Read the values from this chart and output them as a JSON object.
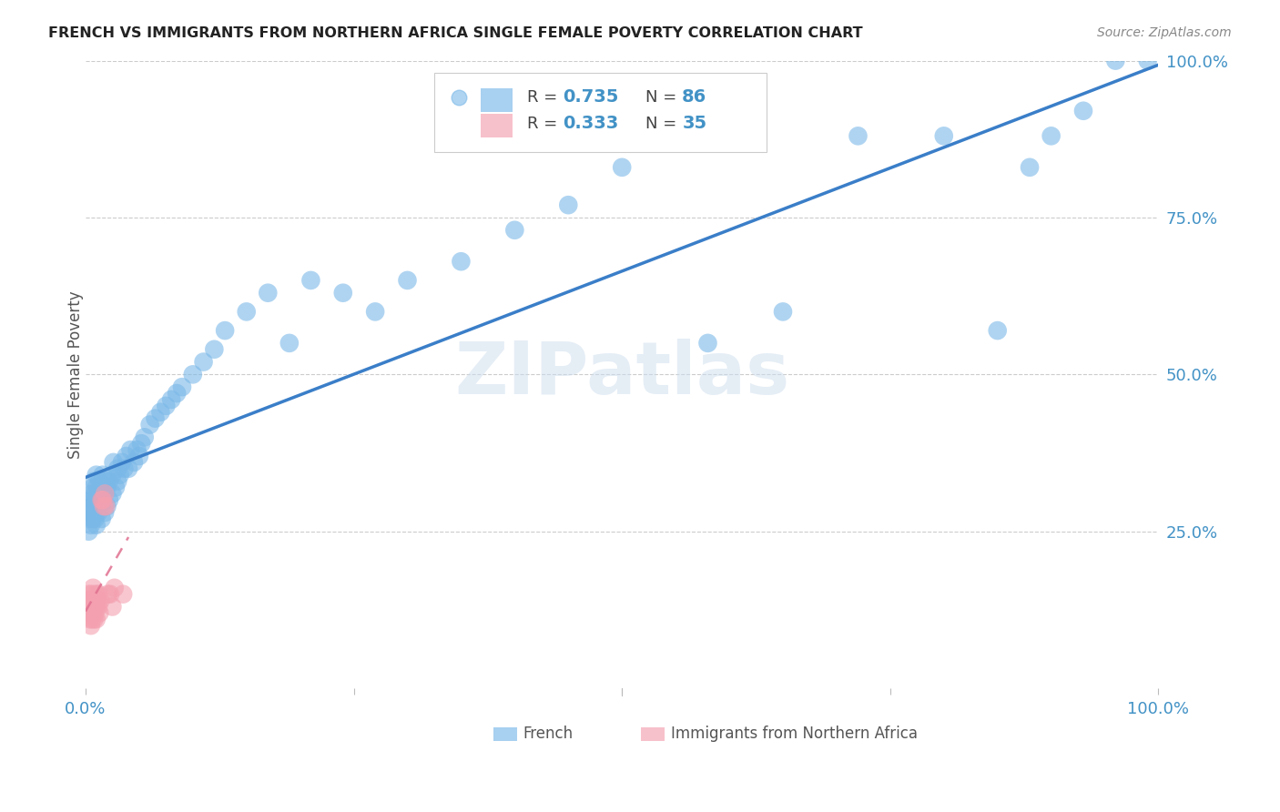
{
  "title": "FRENCH VS IMMIGRANTS FROM NORTHERN AFRICA SINGLE FEMALE POVERTY CORRELATION CHART",
  "source": "Source: ZipAtlas.com",
  "ylabel": "Single Female Poverty",
  "watermark": "ZIPatlas",
  "blue_color": "#7ab8e8",
  "blue_line_color": "#3a7ec8",
  "pink_color": "#f4a0b0",
  "pink_line_color": "#e07090",
  "r_n_color": "#4292c6",
  "title_color": "#222222",
  "grid_color": "#cccccc",
  "axis_label_color": "#4292c6",
  "french_x": [
    0.002,
    0.003,
    0.004,
    0.005,
    0.005,
    0.006,
    0.006,
    0.007,
    0.007,
    0.007,
    0.008,
    0.008,
    0.008,
    0.009,
    0.009,
    0.01,
    0.01,
    0.01,
    0.01,
    0.01,
    0.012,
    0.012,
    0.013,
    0.013,
    0.014,
    0.015,
    0.015,
    0.015,
    0.016,
    0.016,
    0.018,
    0.018,
    0.019,
    0.02,
    0.02,
    0.022,
    0.022,
    0.025,
    0.025,
    0.026,
    0.028,
    0.03,
    0.03,
    0.032,
    0.034,
    0.036,
    0.038,
    0.04,
    0.042,
    0.045,
    0.048,
    0.05,
    0.052,
    0.055,
    0.06,
    0.065,
    0.07,
    0.075,
    0.08,
    0.085,
    0.09,
    0.1,
    0.11,
    0.12,
    0.13,
    0.15,
    0.17,
    0.19,
    0.21,
    0.24,
    0.27,
    0.3,
    0.35,
    0.4,
    0.45,
    0.5,
    0.58,
    0.65,
    0.72,
    0.8,
    0.85,
    0.88,
    0.9,
    0.93,
    0.96,
    0.99
  ],
  "french_y": [
    0.28,
    0.25,
    0.27,
    0.3,
    0.26,
    0.29,
    0.31,
    0.27,
    0.29,
    0.32,
    0.28,
    0.3,
    0.33,
    0.27,
    0.31,
    0.26,
    0.28,
    0.3,
    0.32,
    0.34,
    0.28,
    0.31,
    0.29,
    0.33,
    0.3,
    0.27,
    0.29,
    0.32,
    0.3,
    0.34,
    0.28,
    0.31,
    0.33,
    0.29,
    0.32,
    0.3,
    0.33,
    0.31,
    0.34,
    0.36,
    0.32,
    0.33,
    0.35,
    0.34,
    0.36,
    0.35,
    0.37,
    0.35,
    0.38,
    0.36,
    0.38,
    0.37,
    0.39,
    0.4,
    0.42,
    0.43,
    0.44,
    0.45,
    0.46,
    0.47,
    0.48,
    0.5,
    0.52,
    0.54,
    0.57,
    0.6,
    0.63,
    0.55,
    0.65,
    0.63,
    0.6,
    0.65,
    0.68,
    0.73,
    0.77,
    0.83,
    0.55,
    0.6,
    0.88,
    0.88,
    0.57,
    0.83,
    0.88,
    0.92,
    1.0,
    1.0
  ],
  "immig_x": [
    0.002,
    0.003,
    0.003,
    0.004,
    0.005,
    0.005,
    0.005,
    0.006,
    0.006,
    0.006,
    0.007,
    0.007,
    0.007,
    0.008,
    0.008,
    0.009,
    0.009,
    0.01,
    0.01,
    0.01,
    0.011,
    0.012,
    0.012,
    0.013,
    0.014,
    0.015,
    0.016,
    0.017,
    0.018,
    0.019,
    0.021,
    0.023,
    0.025,
    0.027,
    0.035
  ],
  "immig_y": [
    0.14,
    0.13,
    0.15,
    0.11,
    0.1,
    0.12,
    0.14,
    0.13,
    0.15,
    0.11,
    0.12,
    0.14,
    0.16,
    0.13,
    0.11,
    0.14,
    0.12,
    0.15,
    0.13,
    0.11,
    0.14,
    0.13,
    0.15,
    0.12,
    0.14,
    0.3,
    0.3,
    0.29,
    0.31,
    0.29,
    0.15,
    0.15,
    0.13,
    0.16,
    0.15
  ],
  "xmin": 0.0,
  "xmax": 1.0,
  "ymin": 0.0,
  "ymax": 1.0
}
